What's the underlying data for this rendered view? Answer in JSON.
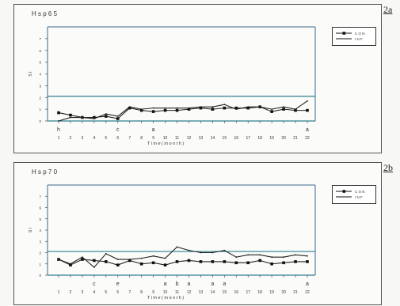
{
  "chart_data": [
    {
      "type": "line",
      "panel_label": "2a",
      "title": "H s p 6 5",
      "xlabel": "T i m e  ( m o n t h )",
      "ylabel": "S I",
      "x": [
        1,
        2,
        3,
        4,
        5,
        6,
        7,
        8,
        9,
        10,
        11,
        12,
        13,
        14,
        15,
        16,
        17,
        18,
        19,
        20,
        21,
        22
      ],
      "xticks": [
        "1",
        "2",
        "3",
        "4",
        "5",
        "6",
        "7",
        "8",
        "9",
        "10",
        "11",
        "12",
        "13",
        "14",
        "15",
        "16",
        "17",
        "18",
        "19",
        "20",
        "21",
        "22"
      ],
      "yticks": [
        "0",
        "1",
        "2",
        "3",
        "4",
        "5",
        "6",
        "7"
      ],
      "ylim": [
        0,
        8
      ],
      "reference_line": 2.1,
      "series": [
        {
          "name": "C O N",
          "marker": "square",
          "values": [
            0.7,
            0.5,
            0.3,
            0.3,
            0.4,
            0.2,
            1.1,
            0.9,
            0.8,
            0.9,
            0.9,
            1.0,
            1.1,
            1.0,
            1.1,
            1.1,
            1.1,
            1.2,
            0.8,
            1.0,
            0.9,
            0.9
          ]
        },
        {
          "name": "I N F",
          "marker": "none",
          "values": [
            0.0,
            0.3,
            0.3,
            0.2,
            0.6,
            0.4,
            1.2,
            1.0,
            1.1,
            1.1,
            1.1,
            1.1,
            1.2,
            1.2,
            1.4,
            1.0,
            1.2,
            1.2,
            1.0,
            1.2,
            1.0,
            1.7
          ]
        }
      ],
      "annotations": [
        {
          "x": 1,
          "text": "h"
        },
        {
          "x": 6,
          "text": "c"
        },
        {
          "x": 9,
          "text": "a"
        },
        {
          "x": 22,
          "text": "a"
        }
      ]
    },
    {
      "type": "line",
      "panel_label": "2b",
      "title": "H s p 7 0",
      "xlabel": "T i m e  ( m o n t h )",
      "ylabel": "S I",
      "x": [
        1,
        2,
        3,
        4,
        5,
        6,
        7,
        8,
        9,
        10,
        11,
        12,
        13,
        14,
        15,
        16,
        17,
        18,
        19,
        20,
        21,
        22
      ],
      "xticks": [
        "1",
        "2",
        "3",
        "4",
        "5",
        "6",
        "7",
        "8",
        "9",
        "10",
        "11",
        "12",
        "13",
        "14",
        "15",
        "16",
        "17",
        "18",
        "19",
        "20",
        "21",
        "22"
      ],
      "yticks": [
        "0",
        "1",
        "2",
        "3",
        "4",
        "5",
        "6",
        "7"
      ],
      "ylim": [
        0,
        8
      ],
      "reference_line": 2.1,
      "series": [
        {
          "name": "C O N",
          "marker": "square",
          "values": [
            1.4,
            0.9,
            1.4,
            1.3,
            1.2,
            0.9,
            1.3,
            1.0,
            1.1,
            0.9,
            1.2,
            1.3,
            1.2,
            1.2,
            1.2,
            1.1,
            1.1,
            1.3,
            1.0,
            1.1,
            1.2,
            1.2
          ]
        },
        {
          "name": "I N F",
          "marker": "none",
          "values": [
            1.4,
            1.0,
            1.6,
            0.7,
            1.9,
            1.4,
            1.4,
            1.5,
            1.7,
            1.5,
            2.5,
            2.2,
            2.0,
            2.0,
            2.2,
            1.6,
            1.8,
            1.8,
            1.6,
            1.6,
            1.8,
            1.7
          ]
        }
      ],
      "annotations": [
        {
          "x": 4,
          "text": "c"
        },
        {
          "x": 6,
          "text": "e"
        },
        {
          "x": 10,
          "text": "a"
        },
        {
          "x": 11,
          "text": "b"
        },
        {
          "x": 12,
          "text": "a"
        },
        {
          "x": 14,
          "text": "a"
        },
        {
          "x": 15,
          "text": "a"
        },
        {
          "x": 22,
          "text": "a"
        }
      ]
    }
  ]
}
